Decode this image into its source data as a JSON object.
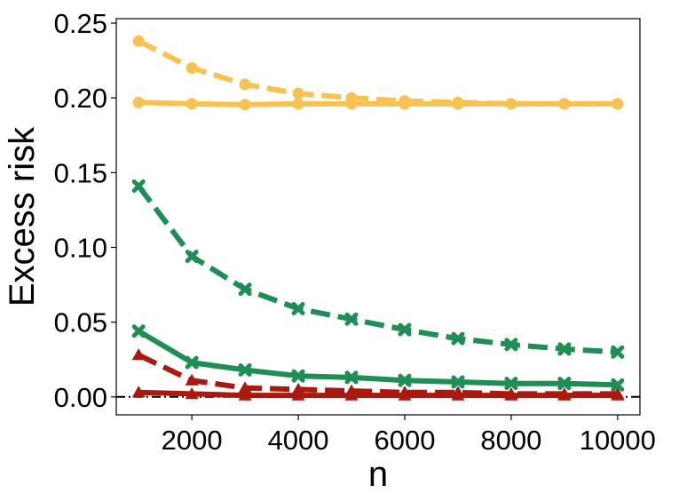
{
  "chart_data": {
    "type": "line",
    "title": "",
    "xlabel": "n",
    "ylabel": "Excess risk",
    "xlim": [
      580,
      10420
    ],
    "ylim": [
      -0.012,
      0.253
    ],
    "xticks": [
      2000,
      4000,
      6000,
      8000,
      10000
    ],
    "yticks": [
      0.0,
      0.05,
      0.1,
      0.15,
      0.2,
      0.25
    ],
    "ytick_labels": [
      "0.00",
      "0.05",
      "0.10",
      "0.15",
      "0.20",
      "0.25"
    ],
    "grid": false,
    "legend": "none",
    "reference_line": {
      "y": 0,
      "style": "dash-dot",
      "color": "#000000"
    },
    "x": [
      1000,
      2000,
      3000,
      4000,
      5000,
      6000,
      7000,
      8000,
      9000,
      10000
    ],
    "series": [
      {
        "color": "#F7C251",
        "linestyle": "dashed",
        "marker": "circle",
        "values": [
          0.238,
          0.22,
          0.209,
          0.203,
          0.2,
          0.198,
          0.197,
          0.196,
          0.196,
          0.196
        ]
      },
      {
        "color": "#F7C251",
        "linestyle": "solid",
        "marker": "circle",
        "values": [
          0.197,
          0.196,
          0.1955,
          0.196,
          0.196,
          0.196,
          0.196,
          0.196,
          0.196,
          0.196
        ]
      },
      {
        "color": "#1E8E55",
        "linestyle": "dashed",
        "marker": "x",
        "values": [
          0.141,
          0.094,
          0.072,
          0.059,
          0.052,
          0.045,
          0.039,
          0.035,
          0.032,
          0.03
        ]
      },
      {
        "color": "#1E8E55",
        "linestyle": "solid",
        "marker": "x",
        "values": [
          0.044,
          0.023,
          0.018,
          0.014,
          0.013,
          0.011,
          0.01,
          0.009,
          0.009,
          0.008
        ]
      },
      {
        "color": "#A8190F",
        "linestyle": "dashed",
        "marker": "triangle",
        "values": [
          0.028,
          0.011,
          0.006,
          0.005,
          0.004,
          0.003,
          0.003,
          0.002,
          0.002,
          0.002
        ]
      },
      {
        "color": "#A8190F",
        "linestyle": "solid",
        "marker": "triangle",
        "values": [
          0.003,
          0.002,
          0.001,
          0.001,
          0.001,
          0.001,
          0.001,
          0.001,
          0.001,
          0.001
        ]
      }
    ]
  }
}
